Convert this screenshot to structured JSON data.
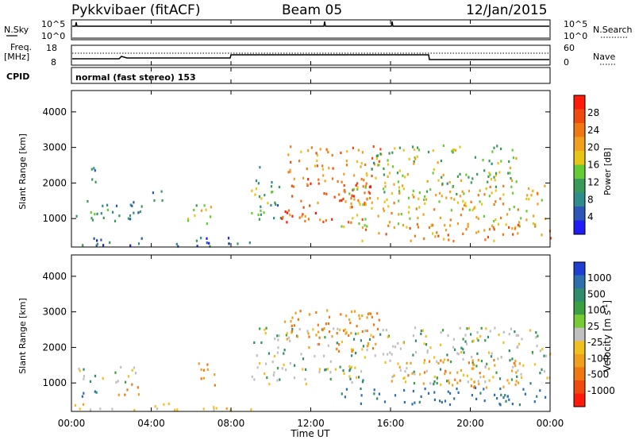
{
  "header": {
    "title": "Pykkvibaer (fitACF)",
    "beam": "Beam 05",
    "date": "12/Jan/2015"
  },
  "param_panels": {
    "nsky_label": "N.Sky",
    "nsky_ticks": [
      "10^5",
      "10^0"
    ],
    "nsearch_label": "N.Search",
    "nsearch_ticks": [
      "10^5",
      "10^0"
    ],
    "freq_label_line1": "Freq.",
    "freq_label_line2": "[MHz]",
    "freq_ticks": [
      "18",
      "8"
    ],
    "nave_label": "Nave",
    "nave_ticks": [
      "60",
      "0"
    ],
    "cpid_label": "CPID",
    "cpid_text": "normal (fast stereo) 153"
  },
  "time_axis": {
    "xlabel": "Time UT",
    "ticks": [
      "00:00",
      "04:00",
      "08:00",
      "12:00",
      "16:00",
      "20:00",
      "00:00"
    ]
  },
  "range_ticks": [
    "1000",
    "2000",
    "3000",
    "4000"
  ],
  "colorbars": {
    "power": {
      "label": "Power [dB]",
      "ticks": [
        "4",
        "8",
        "12",
        "16",
        "20",
        "24",
        "28"
      ],
      "colors": [
        "#1f1cf5",
        "#2c57b8",
        "#2f8c8c",
        "#3a9a5a",
        "#66cc33",
        "#e8c414",
        "#f0a01e",
        "#f07814",
        "#f04a10",
        "#ff1a0a"
      ]
    },
    "velocity": {
      "label_main": "Velocity",
      "label_unit_open": "[m s",
      "label_unit_exp": "-1",
      "label_unit_close": "]",
      "ticks": [
        "1000",
        "500",
        "100",
        "25",
        "-25",
        "-100",
        "-500",
        "-1000"
      ],
      "colors": [
        "#1f3fd0",
        "#2f6fb0",
        "#2f8c6c",
        "#3aa040",
        "#77cc33",
        "#c0c0c0",
        "#f0c020",
        "#f0a01e",
        "#f07814",
        "#f04a10",
        "#ff1a0a"
      ]
    }
  },
  "chart_data": [
    {
      "type": "heatmap",
      "panel": "power",
      "xlabel": "Time UT",
      "ylabel": "Slant Range [km]",
      "x_range_hours": [
        0,
        24
      ],
      "ylim": [
        200,
        4600
      ],
      "colorbar_range_db": [
        0,
        30
      ],
      "blobs": [
        {
          "t0": 0.2,
          "t1": 3.5,
          "r0": 900,
          "r1": 1600,
          "level": 8
        },
        {
          "t0": 0.6,
          "t1": 1.2,
          "r0": 1900,
          "r1": 2700,
          "level": 10
        },
        {
          "t0": 4.0,
          "t1": 4.6,
          "r0": 1200,
          "r1": 1800,
          "level": 9
        },
        {
          "t0": 5.8,
          "t1": 7.2,
          "r0": 800,
          "r1": 1500,
          "level": 14
        },
        {
          "t0": 8.8,
          "t1": 10.5,
          "r0": 1000,
          "r1": 2500,
          "level": 10
        },
        {
          "t0": 10.5,
          "t1": 15.0,
          "r0": 900,
          "r1": 2200,
          "level": 26
        },
        {
          "t0": 10.8,
          "t1": 15.5,
          "r0": 2000,
          "r1": 3100,
          "level": 22
        },
        {
          "t0": 13.5,
          "t1": 24.0,
          "r0": 800,
          "r1": 2000,
          "level": 18
        },
        {
          "t0": 15.0,
          "t1": 22.5,
          "r0": 1700,
          "r1": 3100,
          "level": 14
        },
        {
          "t0": 14.5,
          "t1": 24.0,
          "r0": 400,
          "r1": 900,
          "level": 22
        },
        {
          "t0": 0.0,
          "t1": 9.0,
          "r0": 250,
          "r1": 500,
          "level": 5
        }
      ]
    },
    {
      "type": "heatmap",
      "panel": "velocity",
      "xlabel": "Time UT",
      "ylabel": "Slant Range [km]",
      "x_range_hours": [
        0,
        24
      ],
      "ylim": [
        200,
        4600
      ],
      "colorbar_range_ms": [
        -1000,
        1000
      ],
      "blobs": [
        {
          "t0": 0.2,
          "t1": 3.2,
          "r0": 1000,
          "r1": 1500,
          "vel": 10
        },
        {
          "t0": 0.3,
          "t1": 2.2,
          "r0": 600,
          "r1": 800,
          "vel": 150
        },
        {
          "t0": 2.2,
          "t1": 3.5,
          "r0": 700,
          "r1": 1100,
          "vel": -300
        },
        {
          "t0": 6.0,
          "t1": 7.2,
          "r0": 900,
          "r1": 1600,
          "vel": -250
        },
        {
          "t0": 9.0,
          "t1": 24.0,
          "r0": 1000,
          "r1": 2600,
          "vel": 5
        },
        {
          "t0": 10.5,
          "t1": 15.5,
          "r0": 1900,
          "r1": 3100,
          "vel": -300
        },
        {
          "t0": 16.0,
          "t1": 22.5,
          "r0": 900,
          "r1": 1700,
          "vel": -200
        },
        {
          "t0": 13.5,
          "t1": 24.0,
          "r0": 400,
          "r1": 900,
          "vel": 200
        },
        {
          "t0": 0.0,
          "t1": 9.0,
          "r0": 250,
          "r1": 450,
          "vel": -50
        }
      ]
    }
  ]
}
